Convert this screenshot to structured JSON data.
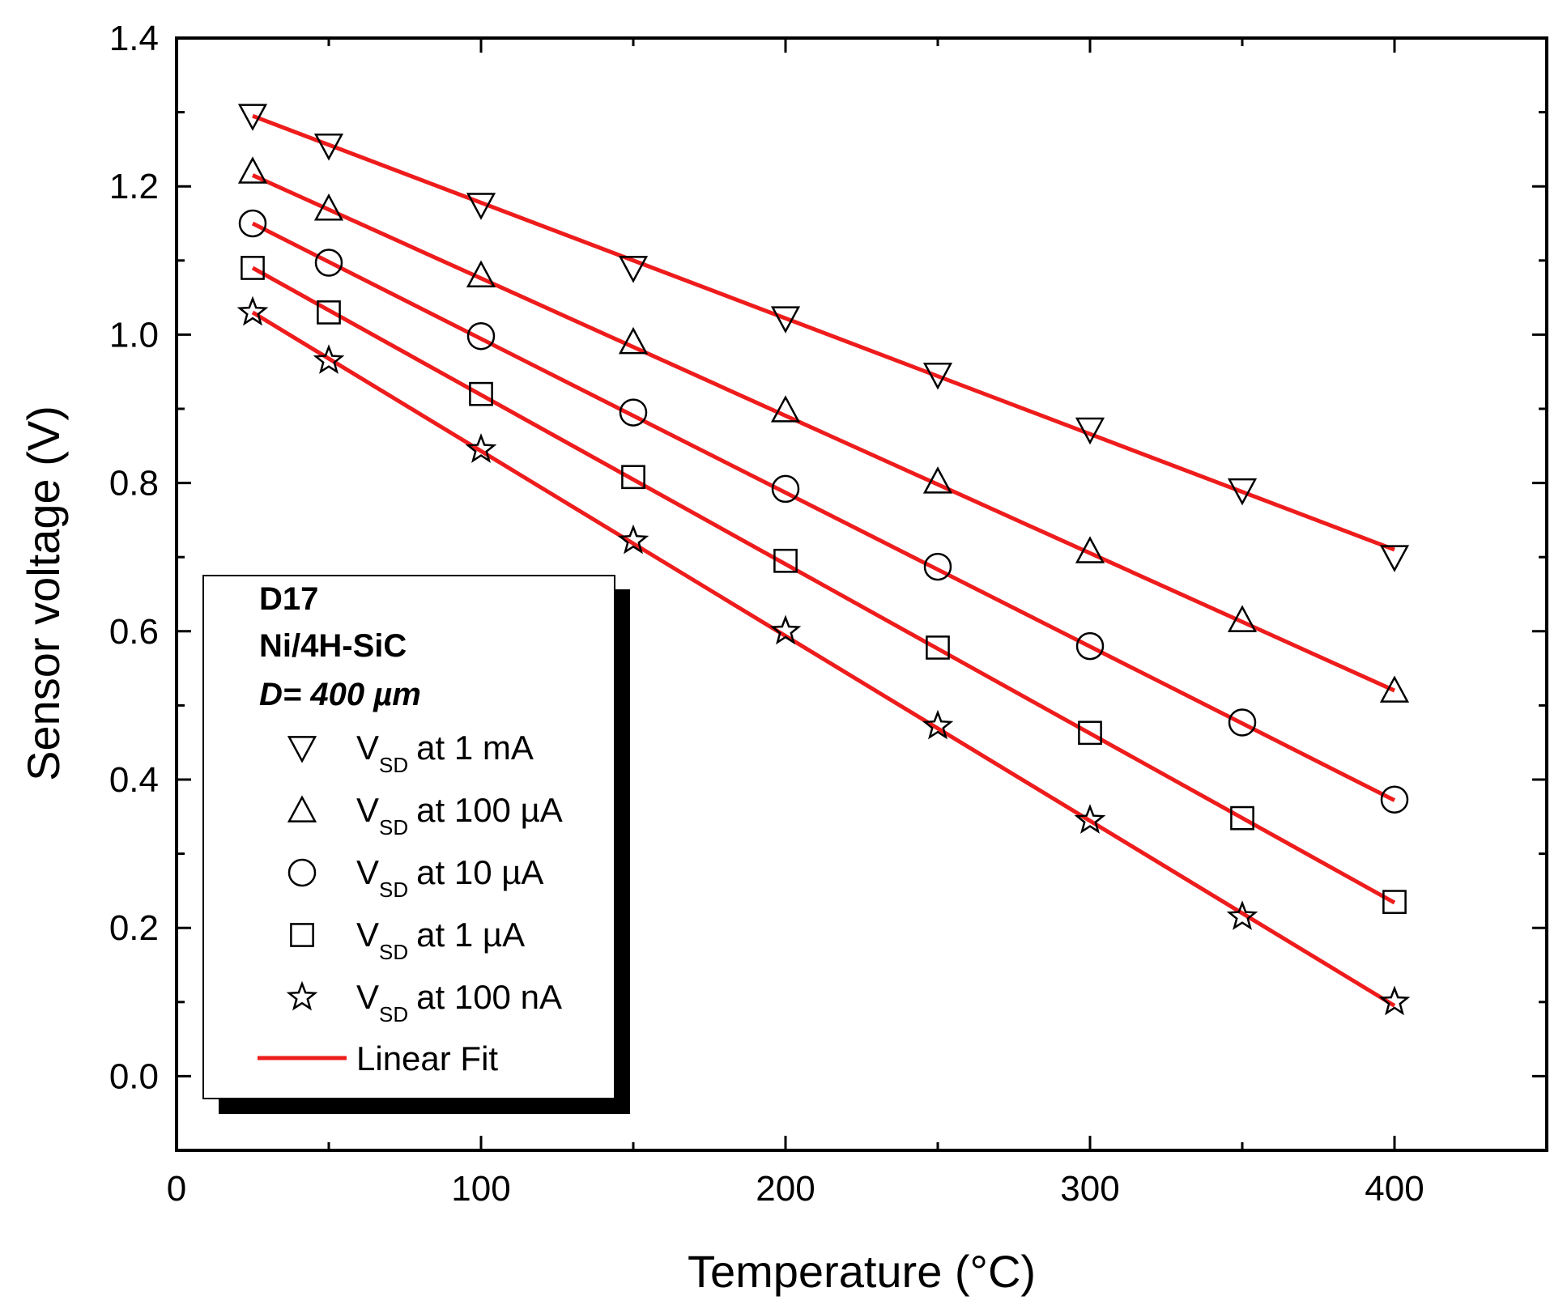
{
  "chart_data": {
    "type": "scatter",
    "title": "",
    "xlabel": "Temperature (°C)",
    "ylabel": "Sensor voltage (V)",
    "xlim": [
      0,
      450
    ],
    "ylim": [
      -0.1,
      1.4
    ],
    "xticks": [
      0,
      100,
      200,
      300,
      400
    ],
    "yticks": [
      0.0,
      0.2,
      0.4,
      0.6,
      0.8,
      1.0,
      1.2,
      1.4
    ],
    "x": [
      25,
      50,
      100,
      150,
      200,
      250,
      300,
      350,
      400
    ],
    "series": [
      {
        "name": "at 1 mA",
        "marker": "triangle-down",
        "values": [
          1.295,
          1.255,
          1.175,
          1.09,
          1.022,
          0.946,
          0.872,
          0.79,
          0.7
        ],
        "fit": [
          1.295,
          0.71
        ]
      },
      {
        "name": "at 100 µA",
        "marker": "triangle-up",
        "values": [
          1.22,
          1.17,
          1.08,
          0.99,
          0.898,
          0.802,
          0.708,
          0.615,
          0.52
        ],
        "fit": [
          1.215,
          0.52
        ]
      },
      {
        "name": "at 10 µA",
        "marker": "circle",
        "values": [
          1.15,
          1.097,
          0.998,
          0.895,
          0.792,
          0.687,
          0.58,
          0.477,
          0.373
        ],
        "fit": [
          1.15,
          0.372
        ]
      },
      {
        "name": "at 1 µA",
        "marker": "square",
        "values": [
          1.09,
          1.03,
          0.92,
          0.808,
          0.695,
          0.578,
          0.463,
          0.348,
          0.235
        ],
        "fit": [
          1.09,
          0.234
        ]
      },
      {
        "name": "at 100 nA",
        "marker": "star",
        "values": [
          1.03,
          0.965,
          0.845,
          0.722,
          0.6,
          0.472,
          0.345,
          0.215,
          0.1
        ],
        "fit": [
          1.03,
          0.095
        ]
      }
    ],
    "fit_label": "Linear Fit",
    "fit_color": "#ee1c1c",
    "series_prefix": "V",
    "series_prefix_sub": "SD",
    "legend": {
      "position": "bottom-left",
      "header_lines": [
        "D17",
        "Ni/4H-SiC"
      ],
      "header_italic": "D= 400 µm"
    }
  }
}
